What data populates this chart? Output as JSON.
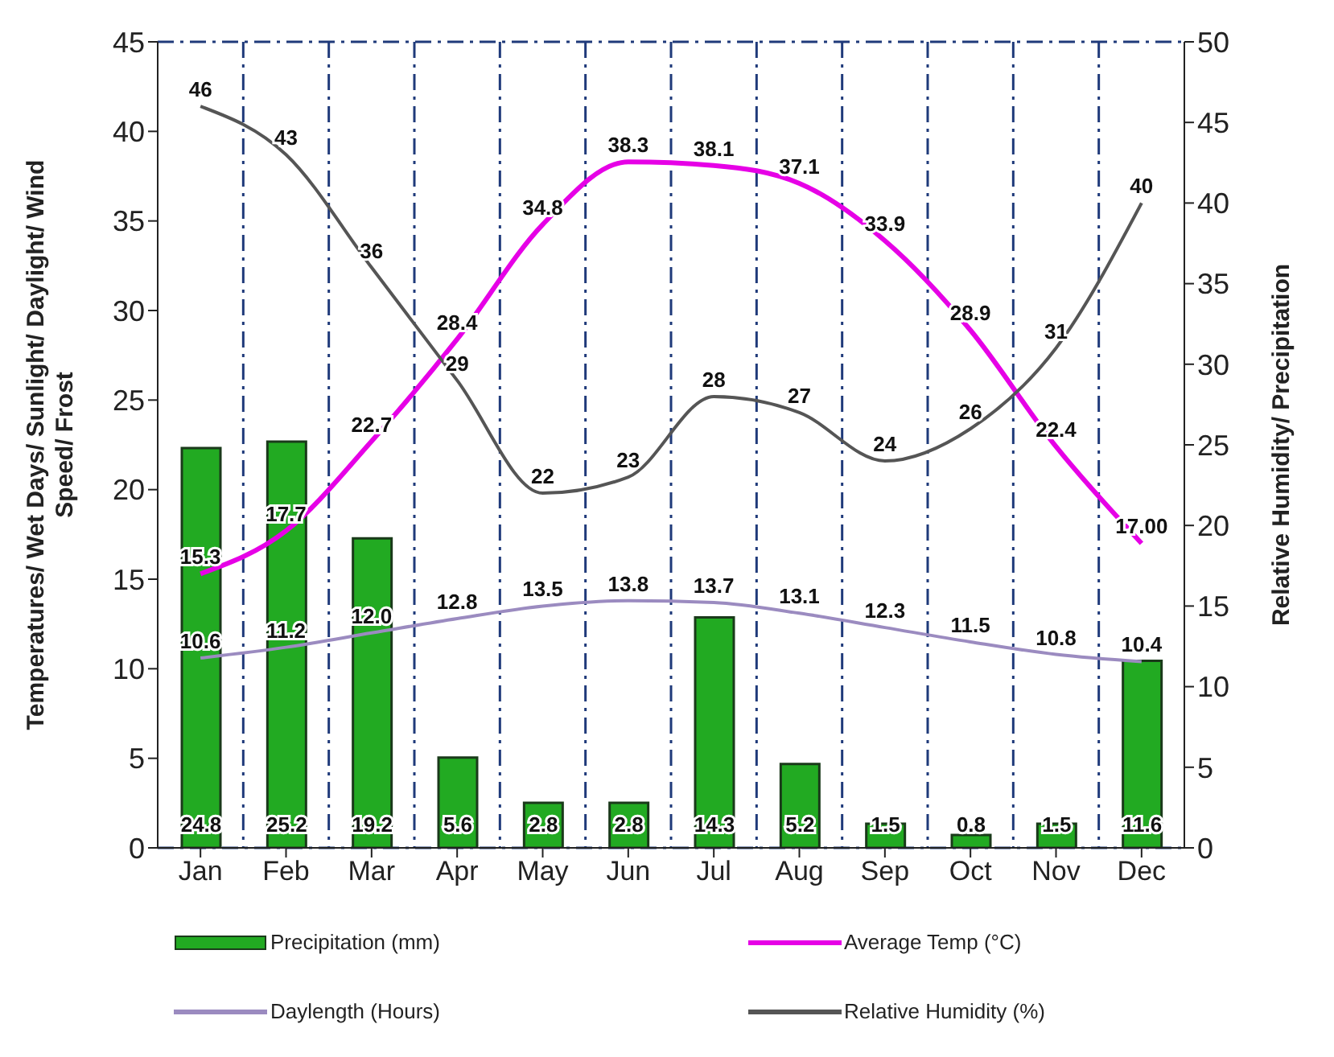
{
  "chart_data": {
    "type": "bar",
    "categories": [
      "Jan",
      "Feb",
      "Mar",
      "Apr",
      "May",
      "Jun",
      "Jul",
      "Aug",
      "Sep",
      "Oct",
      "Nov",
      "Dec"
    ],
    "ylabel": "Temperatures/ Wet Days/ Sunlight/ Daylight/ Wind Speed/ Frost",
    "y2label": "Relative Humidity/ Precipitation",
    "ylim": [
      0,
      45
    ],
    "yticks": [
      0,
      5,
      10,
      15,
      20,
      25,
      30,
      35,
      40,
      45
    ],
    "y2lim": [
      0,
      50
    ],
    "y2ticks": [
      0,
      5,
      10,
      15,
      20,
      25,
      30,
      35,
      40,
      45,
      50
    ],
    "grid": true,
    "legend": "bottom",
    "data_labels": true,
    "series": [
      {
        "name": "Precipitation (mm)",
        "axis": "y2",
        "color": "#22aa22",
        "values": [
          24.8,
          25.2,
          19.2,
          5.6,
          2.8,
          2.8,
          14.3,
          5.2,
          1.5,
          0.8,
          1.5,
          11.6
        ]
      },
      {
        "name": "Average Temp (°C)",
        "type": "line",
        "color": "#e600e6",
        "values": [
          15.3,
          17.7,
          22.7,
          28.4,
          34.8,
          38.3,
          38.1,
          37.1,
          33.9,
          28.9,
          22.4,
          17
        ],
        "value_labels": [
          "15.3",
          "17.7",
          "22.7",
          "28.4",
          "34.8",
          "38.3",
          "38.1",
          "37.1",
          "33.9",
          "28.9",
          "22.4",
          "17.00"
        ]
      },
      {
        "name": "Daylength (Hours)",
        "type": "line",
        "color": "#9b8bc0",
        "values": [
          10.6,
          11.2,
          12.0,
          12.8,
          13.5,
          13.8,
          13.7,
          13.1,
          12.3,
          11.5,
          10.8,
          10.4
        ],
        "value_labels": [
          "10.6",
          "11.2",
          "12.0",
          "12.8",
          "13.5",
          "13.8",
          "13.7",
          "13.1",
          "12.3",
          "11.5",
          "10.8",
          "10.4"
        ]
      },
      {
        "name": "Relative Humidity (%)",
        "type": "line",
        "axis": "y2",
        "color": "#555555",
        "values": [
          46,
          43,
          36,
          29,
          22,
          23,
          28,
          27,
          24,
          26,
          31,
          40
        ]
      }
    ]
  }
}
